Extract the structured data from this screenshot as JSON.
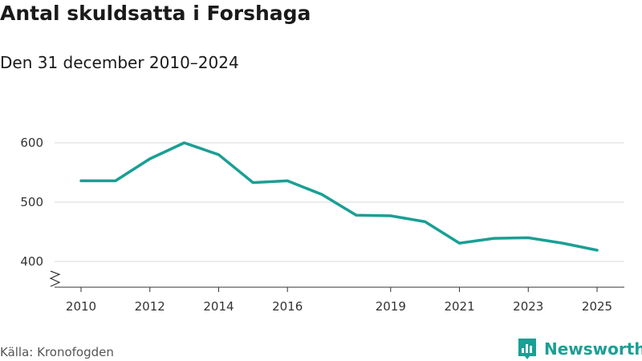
{
  "header": {
    "title": "Antal skuldsatta i Forshaga",
    "subtitle": "Den 31 december 2010–2024"
  },
  "footer": {
    "source": "Källa: Kronofogden",
    "brand": "Newsworthy",
    "brand_icon": "bar-chart-icon"
  },
  "colors": {
    "line": "#1a9f94",
    "grid": "#d9d9d9",
    "axis": "#333333"
  },
  "chart_data": {
    "type": "line",
    "title": "Antal skuldsatta i Forshaga",
    "subtitle": "Den 31 december 2010–2024",
    "xlabel": "",
    "ylabel": "",
    "x": [
      2010,
      2011,
      2012,
      2013,
      2014,
      2015,
      2016,
      2017,
      2018,
      2019,
      2020,
      2021,
      2022,
      2023,
      2024,
      2025
    ],
    "series": [
      {
        "name": "Antal skuldsatta",
        "values": [
          536,
          536,
          573,
          600,
          580,
          533,
          536,
          513,
          478,
          477,
          467,
          431,
          439,
          440,
          431,
          419
        ]
      }
    ],
    "xticks": [
      2010,
      2012,
      2014,
      2016,
      2019,
      2021,
      2023,
      2025
    ],
    "yticks": [
      400,
      500,
      600
    ],
    "ylim": [
      360,
      640
    ],
    "xlim": [
      2009.6,
      2025.4
    ],
    "axis_break": true,
    "grid": true,
    "source": "Källa: Kronofogden"
  }
}
